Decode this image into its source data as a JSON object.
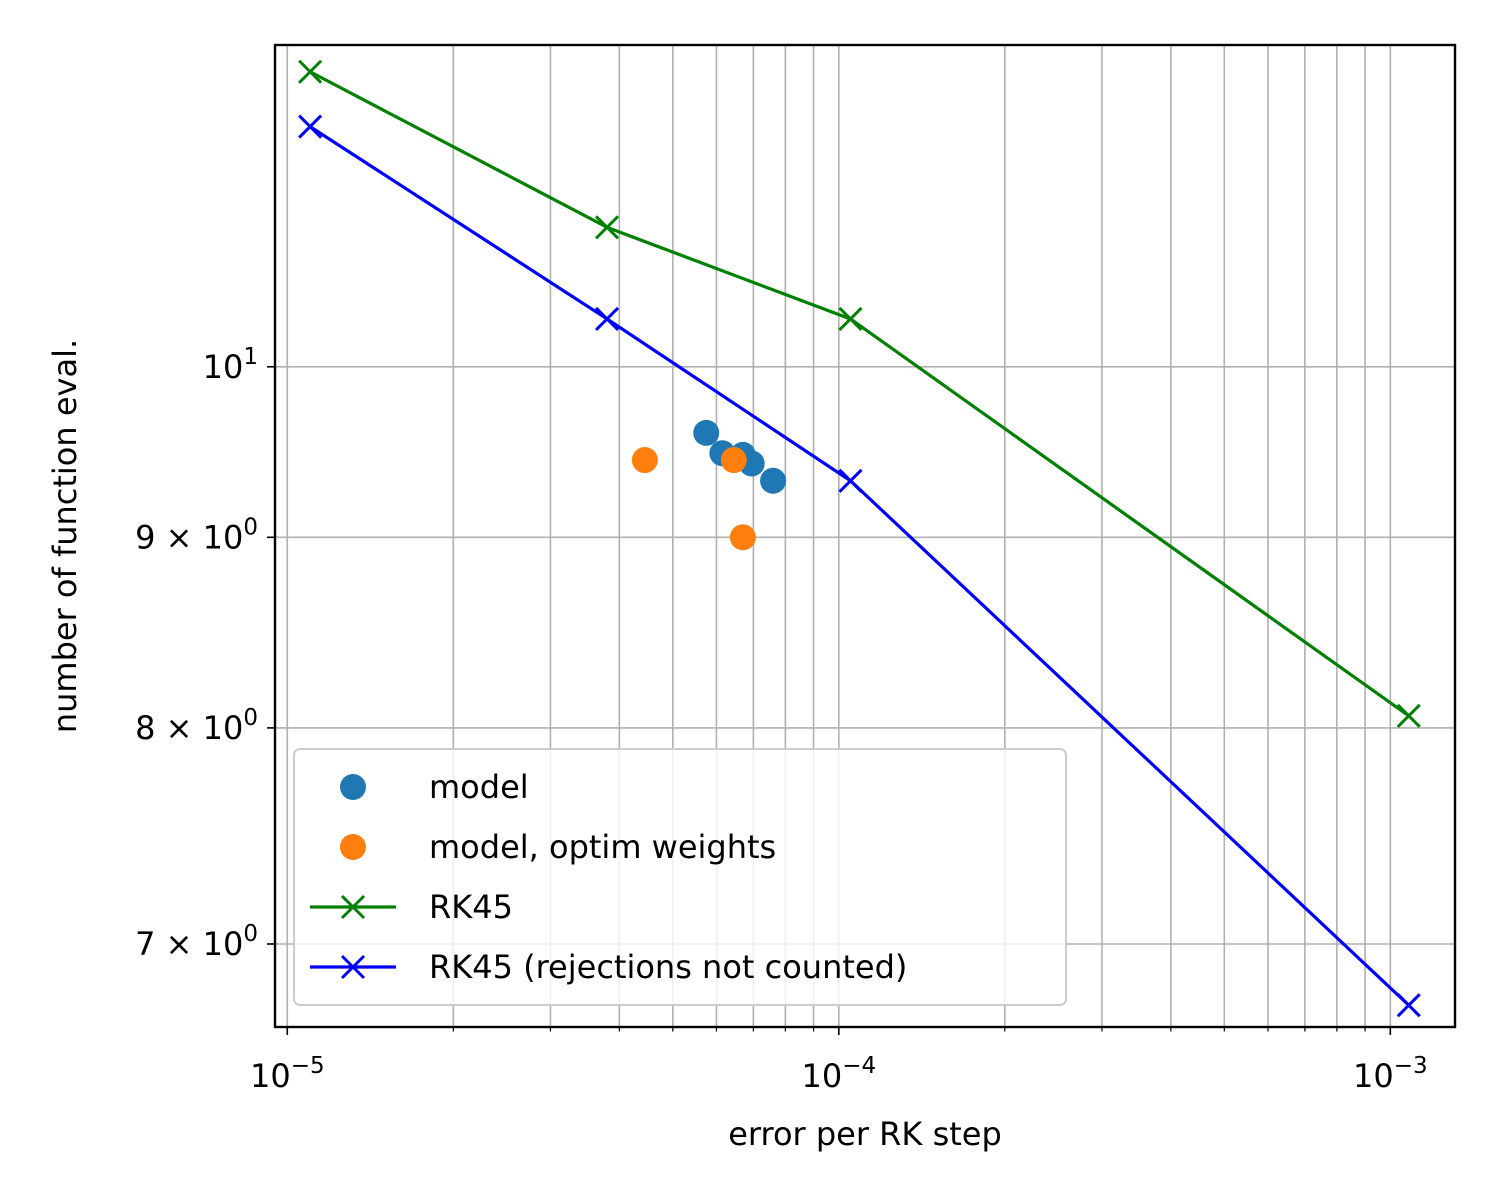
{
  "chart_data": {
    "type": "scatter",
    "xlabel": "error per RK step",
    "ylabel": "number of function eval.",
    "xscale": "log",
    "yscale": "log",
    "xlim": [
      9.5e-06,
      0.00131
    ],
    "ylim": [
      6.65,
      12.2
    ],
    "grid": true,
    "legend_position": "lower-left",
    "x_major_ticks": [
      {
        "value": 1e-05,
        "base": "10",
        "exp": "−5"
      },
      {
        "value": 0.0001,
        "base": "10",
        "exp": "−4"
      },
      {
        "value": 0.001,
        "base": "10",
        "exp": "−3"
      }
    ],
    "y_ticks": [
      {
        "value": 10,
        "base": "10",
        "exp": "1"
      },
      {
        "value": 9,
        "base": "9 × 10",
        "exp": "0"
      },
      {
        "value": 8,
        "base": "8 × 10",
        "exp": "0"
      },
      {
        "value": 7,
        "base": "7 × 10",
        "exp": "0"
      }
    ],
    "series": [
      {
        "name": "model",
        "kind": "scatter",
        "color": "#1f77b4",
        "points": [
          {
            "x": 5.75e-05,
            "y": 9.6
          },
          {
            "x": 6.15e-05,
            "y": 9.48
          },
          {
            "x": 6.7e-05,
            "y": 9.47
          },
          {
            "x": 6.95e-05,
            "y": 9.42
          },
          {
            "x": 7.6e-05,
            "y": 9.32
          }
        ]
      },
      {
        "name": "model, optim weights",
        "kind": "scatter",
        "color": "#ff7f0e",
        "points": [
          {
            "x": 4.45e-05,
            "y": 9.44
          },
          {
            "x": 6.45e-05,
            "y": 9.44
          },
          {
            "x": 6.7e-05,
            "y": 9.0
          }
        ]
      },
      {
        "name": "RK45",
        "kind": "line-x",
        "color": "#008000",
        "points": [
          {
            "x": 1.1e-05,
            "y": 12.0
          },
          {
            "x": 3.8e-05,
            "y": 10.9
          },
          {
            "x": 0.000105,
            "y": 10.3
          },
          {
            "x": 0.00108,
            "y": 8.06
          }
        ]
      },
      {
        "name": "RK45 (rejections not counted)",
        "kind": "line-x",
        "color": "#0000ff",
        "points": [
          {
            "x": 1.1e-05,
            "y": 11.6
          },
          {
            "x": 3.8e-05,
            "y": 10.3
          },
          {
            "x": 0.000105,
            "y": 9.32
          },
          {
            "x": 0.00108,
            "y": 6.74
          }
        ]
      }
    ]
  }
}
